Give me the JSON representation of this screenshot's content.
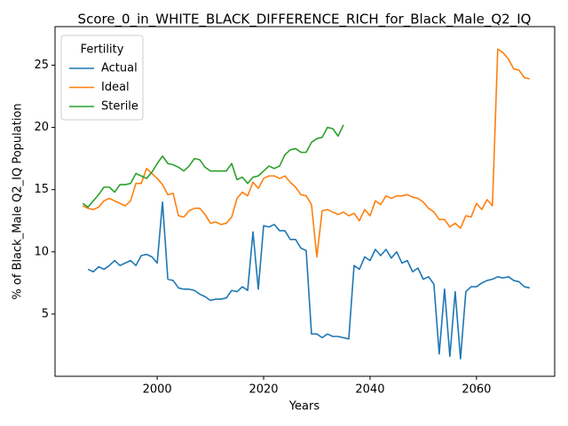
{
  "chart_data": {
    "type": "line",
    "title": "Score_0_in_WHITE_BLACK_DIFFERENCE_RICH_for_Black_Male_Q2_IQ",
    "xlabel": "Years",
    "ylabel": "% of Black_Male Q2_IQ Population",
    "legend_title": "Fertility",
    "legend": "upper left",
    "grid": false,
    "xlim": [
      1980.8,
      2074.7
    ],
    "ylim": [
      0.0,
      28.1
    ],
    "xticks": [
      2000,
      2020,
      2040,
      2060
    ],
    "yticks": [
      5,
      10,
      15,
      20,
      25
    ],
    "x": [
      1986,
      1987,
      1988,
      1989,
      1990,
      1991,
      1992,
      1993,
      1994,
      1995,
      1996,
      1997,
      1998,
      1999,
      2000,
      2001,
      2002,
      2003,
      2004,
      2005,
      2006,
      2007,
      2008,
      2009,
      2010,
      2011,
      2012,
      2013,
      2014,
      2015,
      2016,
      2017,
      2018,
      2019,
      2020,
      2021,
      2022,
      2023,
      2024,
      2025,
      2026,
      2027,
      2028,
      2029,
      2030,
      2031,
      2032,
      2033,
      2034,
      2035,
      2036,
      2037,
      2038,
      2039,
      2040,
      2041,
      2042,
      2043,
      2044,
      2045,
      2046,
      2047,
      2048,
      2049,
      2050,
      2051,
      2052,
      2053,
      2054,
      2055,
      2056,
      2057,
      2058,
      2059,
      2060,
      2061,
      2062,
      2063,
      2064,
      2065,
      2066,
      2067,
      2068,
      2069,
      2070
    ],
    "series": [
      {
        "name": "Actual",
        "color": "#1f77b4",
        "values": [
          null,
          8.6,
          8.4,
          8.8,
          8.6,
          8.9,
          9.3,
          8.9,
          9.1,
          9.3,
          8.9,
          9.7,
          9.8,
          9.6,
          9.1,
          14.0,
          7.8,
          7.7,
          7.1,
          7.0,
          7.0,
          6.9,
          6.6,
          6.4,
          6.1,
          6.2,
          6.2,
          6.3,
          6.9,
          6.8,
          7.2,
          6.9,
          11.6,
          7.0,
          12.1,
          12.0,
          12.2,
          11.7,
          11.7,
          11.0,
          11.0,
          10.3,
          10.1,
          3.4,
          3.4,
          3.1,
          3.4,
          3.2,
          3.2,
          3.1,
          3.0,
          8.9,
          8.6,
          9.6,
          9.3,
          10.2,
          9.7,
          10.2,
          9.5,
          10.0,
          9.1,
          9.3,
          8.4,
          8.7,
          7.8,
          8.0,
          7.4,
          1.8,
          7.0,
          1.6,
          6.8,
          1.4,
          6.8,
          7.2,
          7.2,
          7.5,
          7.7,
          7.8,
          8.0,
          7.9,
          8.0,
          7.7,
          7.6,
          7.2,
          7.1
        ]
      },
      {
        "name": "Ideal",
        "color": "#ff7f0e",
        "values": [
          13.7,
          13.5,
          13.4,
          13.6,
          14.1,
          14.3,
          14.1,
          13.9,
          13.7,
          14.1,
          15.5,
          15.5,
          16.7,
          16.3,
          15.9,
          15.4,
          14.6,
          14.7,
          12.9,
          12.8,
          13.3,
          13.5,
          13.5,
          13.0,
          12.3,
          12.4,
          12.2,
          12.3,
          12.8,
          14.3,
          14.8,
          14.5,
          15.6,
          15.1,
          15.9,
          16.1,
          16.1,
          15.9,
          16.1,
          15.6,
          15.2,
          14.6,
          14.5,
          13.8,
          9.6,
          13.3,
          13.4,
          13.2,
          13.0,
          13.2,
          12.9,
          13.1,
          12.5,
          13.4,
          12.9,
          14.1,
          13.8,
          14.5,
          14.3,
          14.5,
          14.5,
          14.6,
          14.4,
          14.3,
          14.0,
          13.5,
          13.2,
          12.6,
          12.6,
          12.0,
          12.3,
          11.9,
          12.9,
          12.8,
          13.9,
          13.4,
          14.2,
          13.7,
          26.3,
          26.0,
          25.5,
          24.7,
          24.6,
          24.0,
          23.9
        ]
      },
      {
        "name": "Sterile",
        "color": "#2ca02c",
        "values": [
          13.9,
          13.6,
          14.1,
          14.6,
          15.2,
          15.2,
          14.8,
          15.4,
          15.4,
          15.5,
          16.3,
          16.1,
          15.9,
          16.4,
          17.1,
          17.7,
          17.1,
          17.0,
          16.8,
          16.5,
          16.9,
          17.5,
          17.4,
          16.8,
          16.5,
          16.5,
          16.5,
          16.5,
          17.1,
          15.8,
          16.0,
          15.5,
          16.0,
          16.1,
          16.5,
          16.9,
          16.7,
          16.9,
          17.8,
          18.2,
          18.3,
          18.0,
          18.0,
          18.8,
          19.1,
          19.2,
          20.0,
          19.9,
          19.3,
          20.2,
          null,
          null,
          null,
          null,
          null,
          null,
          null,
          null,
          null,
          null,
          null,
          null,
          null,
          null,
          null,
          null,
          null,
          null,
          null,
          null,
          null,
          null,
          null,
          null,
          null,
          null,
          null,
          null,
          null,
          null,
          null,
          null,
          null,
          null,
          null
        ]
      }
    ]
  }
}
